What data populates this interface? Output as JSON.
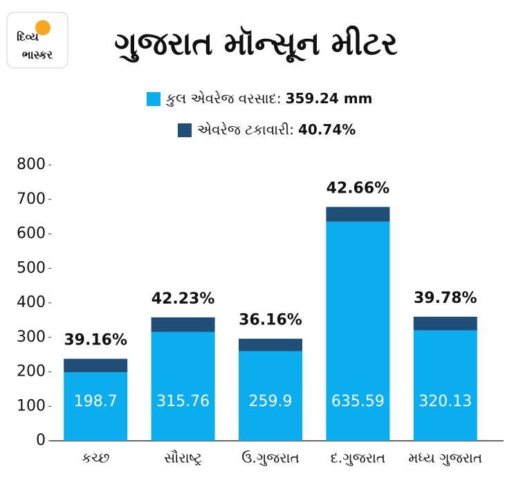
{
  "chart_data": {
    "type": "stacked_bar",
    "brand": [
      "દિવ્ય",
      "ભાસ્કર"
    ],
    "title": "ગુજરાત મૉન્સૂન મીટર",
    "categories": [
      "કચ્છ",
      "સૌરાષ્ટ્ર",
      "ઉ.ગુજરાત",
      "દ.ગુજરાત",
      "મધ્ય ગુજરાત"
    ],
    "series": [
      {
        "name": "કુલ એવરેજ વરસાદ:",
        "summary": "359.24 mm",
        "color": "#0aaeef",
        "values": [
          198.7,
          315.76,
          259.9,
          635.59,
          320.13
        ]
      },
      {
        "name": "એવરેજ ટકાવારી:",
        "summary": "40.74%",
        "color": "#1f4e79",
        "values": [
          39.16,
          42.23,
          36.16,
          42.66,
          39.78
        ],
        "value_labels": [
          "39.16%",
          "42.23%",
          "36.16%",
          "42.66%",
          "39.78%"
        ]
      }
    ],
    "ylim": [
      0,
      800
    ],
    "yticks": [
      0,
      100,
      200,
      300,
      400,
      500,
      600,
      700,
      800
    ],
    "grid": false
  }
}
